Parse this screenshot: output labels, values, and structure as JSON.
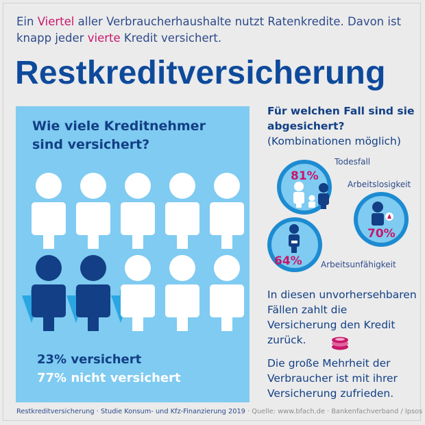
{
  "intro": {
    "p1": "Ein ",
    "p1_hl": "Viertel",
    "p2": " aller Verbraucherhaushalte nutzt Ratenkredite. Davon ist knapp jeder ",
    "p2_hl": "vierte",
    "p3": " Kredit versichert."
  },
  "title": "Restkreditversicherung",
  "panel": {
    "question": "Wie viele Kreditnehmer sind versichert?",
    "stat_insured": "23% versichert",
    "stat_not_insured": "77% nicht versichert",
    "insured_share": 0.23
  },
  "right": {
    "question_bold": "Für welchen Fall sind sie abgesichert?",
    "question_note": "(Kombinationen möglich)",
    "cases": [
      {
        "label": "Todesfall",
        "percent": "81%"
      },
      {
        "label": "Arbeitslosigkeit",
        "percent": "70%"
      },
      {
        "label": "Arbeitsunfähigkeit",
        "percent": "64%"
      }
    ],
    "text1": "In diesen unvorhersehbaren Fällen zahlt die Versicherung den Kredit zurück.",
    "text2": "Die große Mehrheit der Verbraucher ist mit ihrer Versicherung zufrieden."
  },
  "footer": {
    "main": "Restkreditversicherung · Studie Konsum- und Kfz-Finanzierung 2019",
    "source": " · Quelle: www.bfach.de · Bankenfachverband / Ipsos"
  },
  "colors": {
    "background": "#ebebeb",
    "title_blue": "#0e4a9b",
    "text_blue": "#123f85",
    "highlight_magenta": "#c8176b",
    "panel_light_blue": "#7fcbf1",
    "circle_blue": "#1d8bd1",
    "umbrella_blue": "#2aa7e3"
  },
  "icons": [
    "person-icon",
    "umbrella-icon",
    "family-icon",
    "worker-icon",
    "injured-person-icon",
    "coin-stack-icon"
  ]
}
